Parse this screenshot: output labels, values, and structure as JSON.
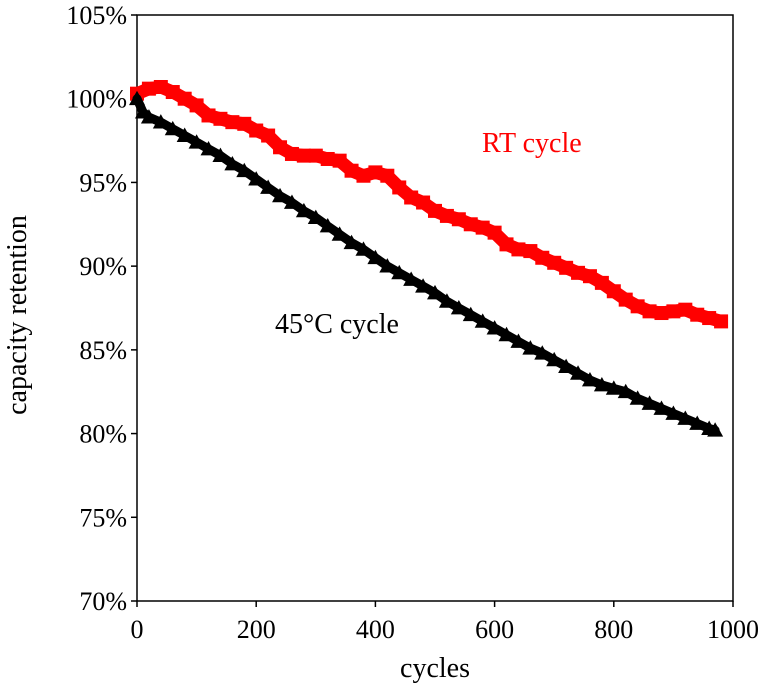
{
  "chart_data": {
    "type": "scatter",
    "title": "",
    "xlabel": "cycles",
    "ylabel": "capacity retention",
    "xlim": [
      0,
      1000
    ],
    "ylim": [
      70,
      105
    ],
    "xticks": [
      0,
      200,
      400,
      600,
      800,
      1000
    ],
    "yticks": [
      70,
      75,
      80,
      85,
      90,
      95,
      100,
      105
    ],
    "xtick_labels": [
      "0",
      "200",
      "400",
      "600",
      "800",
      "1000"
    ],
    "ytick_labels": [
      "70%",
      "75%",
      "80%",
      "85%",
      "90%",
      "95%",
      "100%",
      "105%"
    ],
    "grid": false,
    "legend": "none",
    "series": [
      {
        "name": "RT cycle",
        "label": "RT cycle",
        "color": "#ff0000",
        "marker": "square",
        "x": [
          0,
          20,
          40,
          60,
          80,
          100,
          120,
          140,
          160,
          180,
          200,
          220,
          240,
          260,
          280,
          300,
          320,
          340,
          360,
          380,
          400,
          420,
          440,
          460,
          480,
          500,
          520,
          540,
          560,
          580,
          600,
          620,
          640,
          660,
          680,
          700,
          720,
          740,
          760,
          780,
          800,
          820,
          840,
          860,
          880,
          900,
          920,
          940,
          960,
          980
        ],
        "y": [
          100.3,
          100.6,
          100.7,
          100.4,
          100.0,
          99.6,
          99.0,
          98.8,
          98.6,
          98.5,
          98.1,
          97.8,
          97.1,
          96.7,
          96.6,
          96.6,
          96.4,
          96.3,
          95.7,
          95.4,
          95.6,
          95.4,
          94.7,
          94.1,
          93.8,
          93.3,
          93.0,
          92.8,
          92.5,
          92.3,
          92.0,
          91.3,
          91.0,
          90.9,
          90.5,
          90.2,
          89.9,
          89.6,
          89.4,
          89.0,
          88.5,
          88.0,
          87.6,
          87.3,
          87.2,
          87.3,
          87.4,
          87.1,
          86.9,
          86.7
        ]
      },
      {
        "name": "45°C cycle",
        "label": "45°C cycle",
        "color": "#000000",
        "marker": "triangle",
        "x": [
          0,
          10,
          20,
          40,
          60,
          80,
          100,
          120,
          140,
          160,
          180,
          200,
          220,
          240,
          260,
          280,
          300,
          320,
          340,
          360,
          380,
          400,
          420,
          440,
          460,
          480,
          500,
          520,
          540,
          560,
          580,
          600,
          620,
          640,
          660,
          680,
          700,
          720,
          740,
          760,
          780,
          800,
          820,
          840,
          860,
          880,
          900,
          920,
          940,
          960,
          970
        ],
        "y": [
          100.0,
          99.2,
          98.9,
          98.6,
          98.2,
          97.8,
          97.4,
          97.0,
          96.6,
          96.1,
          95.7,
          95.2,
          94.7,
          94.2,
          93.8,
          93.3,
          92.9,
          92.4,
          91.9,
          91.4,
          91.0,
          90.5,
          90.0,
          89.6,
          89.2,
          88.8,
          88.4,
          87.9,
          87.5,
          87.1,
          86.7,
          86.3,
          85.9,
          85.5,
          85.1,
          84.8,
          84.4,
          84.0,
          83.6,
          83.2,
          82.9,
          82.7,
          82.5,
          82.1,
          81.8,
          81.5,
          81.2,
          80.9,
          80.6,
          80.3,
          80.2
        ]
      }
    ]
  }
}
